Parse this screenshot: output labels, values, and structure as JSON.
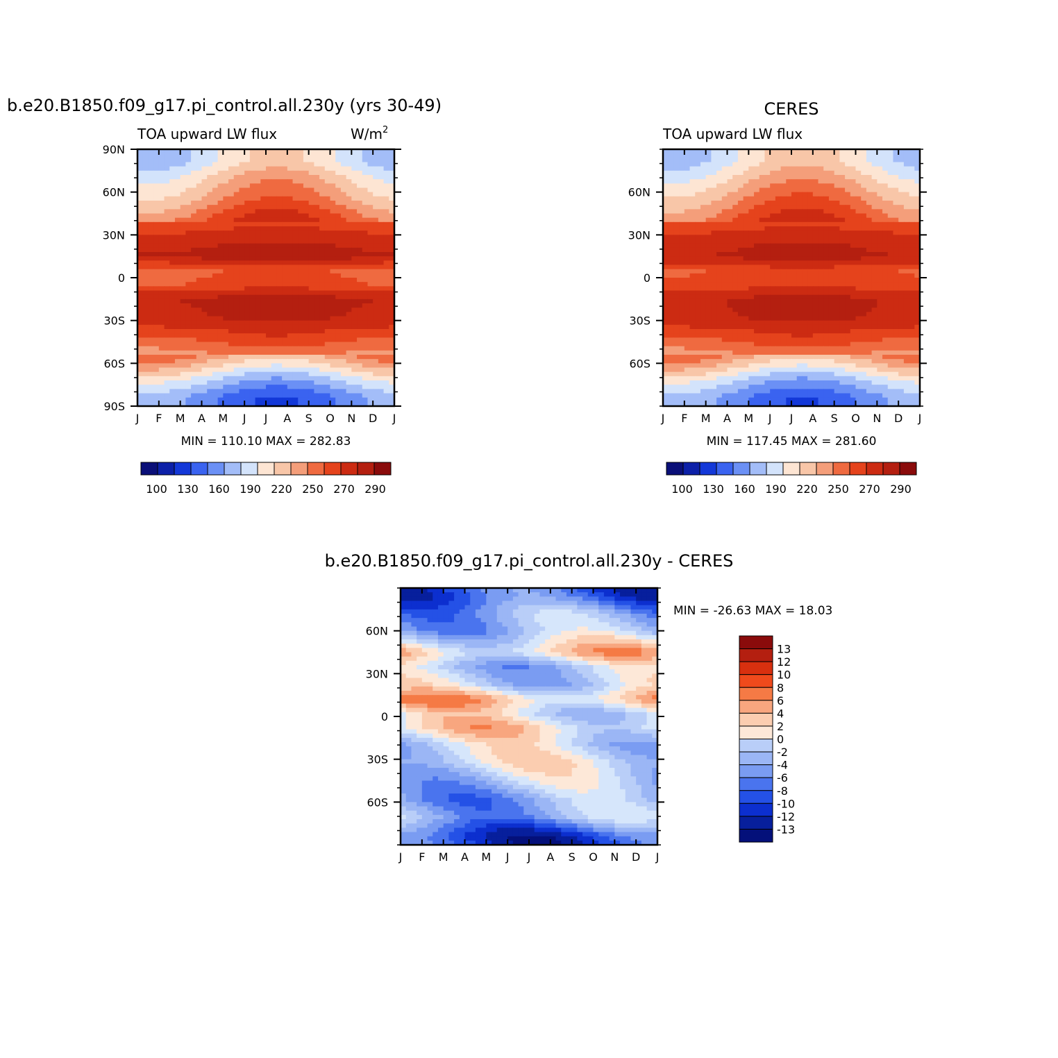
{
  "chart_data": [
    {
      "type": "heatmap",
      "id": "model",
      "title": "b.e20.B1850.f09_g17.pi_control.all.230y (yrs 30-49)",
      "left_label": "TOA upward LW flux",
      "right_label": "W/m",
      "right_label_sup": "2",
      "months": [
        "J",
        "F",
        "M",
        "A",
        "M",
        "J",
        "J",
        "A",
        "S",
        "O",
        "N",
        "D",
        "J"
      ],
      "lat_ticks": [
        "90N",
        "60N",
        "30N",
        "0",
        "30S",
        "60S",
        "90S"
      ],
      "stats": {
        "min_label": "MIN =",
        "min": "110.10",
        "max_label": "MAX =",
        "max": "282.83"
      },
      "colorbar": {
        "colors": [
          "#0a0f78",
          "#0c20a8",
          "#1338d8",
          "#3a63f0",
          "#6b90f5",
          "#a3bdf8",
          "#d3e3fb",
          "#fde5d3",
          "#f8c6a8",
          "#f49e7a",
          "#ef6a40",
          "#e5431c",
          "#cc2b12",
          "#b41f10",
          "#8a0b0b"
        ],
        "labels": [
          "100",
          "130",
          "160",
          "190",
          "220",
          "250",
          "270",
          "290"
        ]
      },
      "lat_bands": [
        {
          "lat": 82,
          "value": 185
        },
        {
          "lat": 70,
          "value": 205
        },
        {
          "lat": 55,
          "value": 222
        },
        {
          "lat": 40,
          "value": 246
        },
        {
          "lat": 28,
          "value": 262
        },
        {
          "lat": 15,
          "value": 275
        },
        {
          "lat": 5,
          "value": 240
        },
        {
          "lat": -5,
          "value": 245
        },
        {
          "lat": -15,
          "value": 272
        },
        {
          "lat": -28,
          "value": 268
        },
        {
          "lat": -40,
          "value": 250
        },
        {
          "lat": -52,
          "value": 230
        },
        {
          "lat": -62,
          "value": 205
        },
        {
          "lat": -72,
          "value": 175
        },
        {
          "lat": -84,
          "value": 150
        }
      ]
    },
    {
      "type": "heatmap",
      "id": "ceres",
      "title": "CERES",
      "left_label": "TOA upward LW flux",
      "months": [
        "J",
        "F",
        "M",
        "A",
        "M",
        "J",
        "J",
        "A",
        "S",
        "O",
        "N",
        "D",
        "J"
      ],
      "lat_ticks": [
        "60N",
        "30N",
        "0",
        "30S",
        "60S"
      ],
      "stats": {
        "min_label": "MIN =",
        "min": "117.45",
        "max_label": "MAX =",
        "max": "281.60"
      },
      "colorbar": {
        "colors": [
          "#0a0f78",
          "#0c20a8",
          "#1338d8",
          "#3a63f0",
          "#6b90f5",
          "#a3bdf8",
          "#d3e3fb",
          "#fde5d3",
          "#f8c6a8",
          "#f49e7a",
          "#ef6a40",
          "#e5431c",
          "#cc2b12",
          "#b41f10",
          "#8a0b0b"
        ],
        "labels": [
          "100",
          "130",
          "160",
          "190",
          "220",
          "250",
          "270",
          "290"
        ]
      },
      "lat_bands": [
        {
          "lat": 82,
          "value": 188
        },
        {
          "lat": 70,
          "value": 205
        },
        {
          "lat": 55,
          "value": 225
        },
        {
          "lat": 40,
          "value": 245
        },
        {
          "lat": 28,
          "value": 262
        },
        {
          "lat": 15,
          "value": 272
        },
        {
          "lat": 5,
          "value": 245
        },
        {
          "lat": -5,
          "value": 248
        },
        {
          "lat": -15,
          "value": 270
        },
        {
          "lat": -28,
          "value": 268
        },
        {
          "lat": -40,
          "value": 250
        },
        {
          "lat": -52,
          "value": 230
        },
        {
          "lat": -62,
          "value": 205
        },
        {
          "lat": -72,
          "value": 175
        },
        {
          "lat": -84,
          "value": 152
        }
      ]
    },
    {
      "type": "heatmap",
      "id": "diff",
      "title": "b.e20.B1850.f09_g17.pi_control.all.230y - CERES",
      "months": [
        "J",
        "F",
        "M",
        "A",
        "M",
        "J",
        "J",
        "A",
        "S",
        "O",
        "N",
        "D",
        "J"
      ],
      "lat_ticks": [
        "60N",
        "30N",
        "0",
        "30S",
        "60S"
      ],
      "stats": {
        "min_label": "MIN =",
        "min": "-26.63",
        "max_label": "MAX =",
        "max": "18.03"
      },
      "colorbar": {
        "colors": [
          "#8a0b0b",
          "#b41f10",
          "#d8300f",
          "#ef4a1c",
          "#f57a45",
          "#f8a67f",
          "#fbcdb0",
          "#fde8d8",
          "#d6e6fb",
          "#b9cef8",
          "#9bb6f5",
          "#7a9cf2",
          "#4a74ee",
          "#2451e6",
          "#0c2fcf",
          "#071f9c",
          "#04107a"
        ],
        "labels": [
          "13",
          "12",
          "10",
          "8",
          "6",
          "4",
          "2",
          "0",
          "-2",
          "-4",
          "-6",
          "-8",
          "-10",
          "-12",
          "-13"
        ]
      },
      "lat_bands": [
        {
          "lat": 84,
          "value": -8
        },
        {
          "lat": 72,
          "value": -4
        },
        {
          "lat": 60,
          "value": -3
        },
        {
          "lat": 45,
          "value": 3
        },
        {
          "lat": 35,
          "value": -2
        },
        {
          "lat": 22,
          "value": -1
        },
        {
          "lat": 12,
          "value": 4
        },
        {
          "lat": 2,
          "value": 0
        },
        {
          "lat": -8,
          "value": 2
        },
        {
          "lat": -20,
          "value": -1
        },
        {
          "lat": -32,
          "value": 0
        },
        {
          "lat": -45,
          "value": -2
        },
        {
          "lat": -58,
          "value": -4
        },
        {
          "lat": -70,
          "value": -3
        },
        {
          "lat": -84,
          "value": -9
        }
      ]
    }
  ]
}
